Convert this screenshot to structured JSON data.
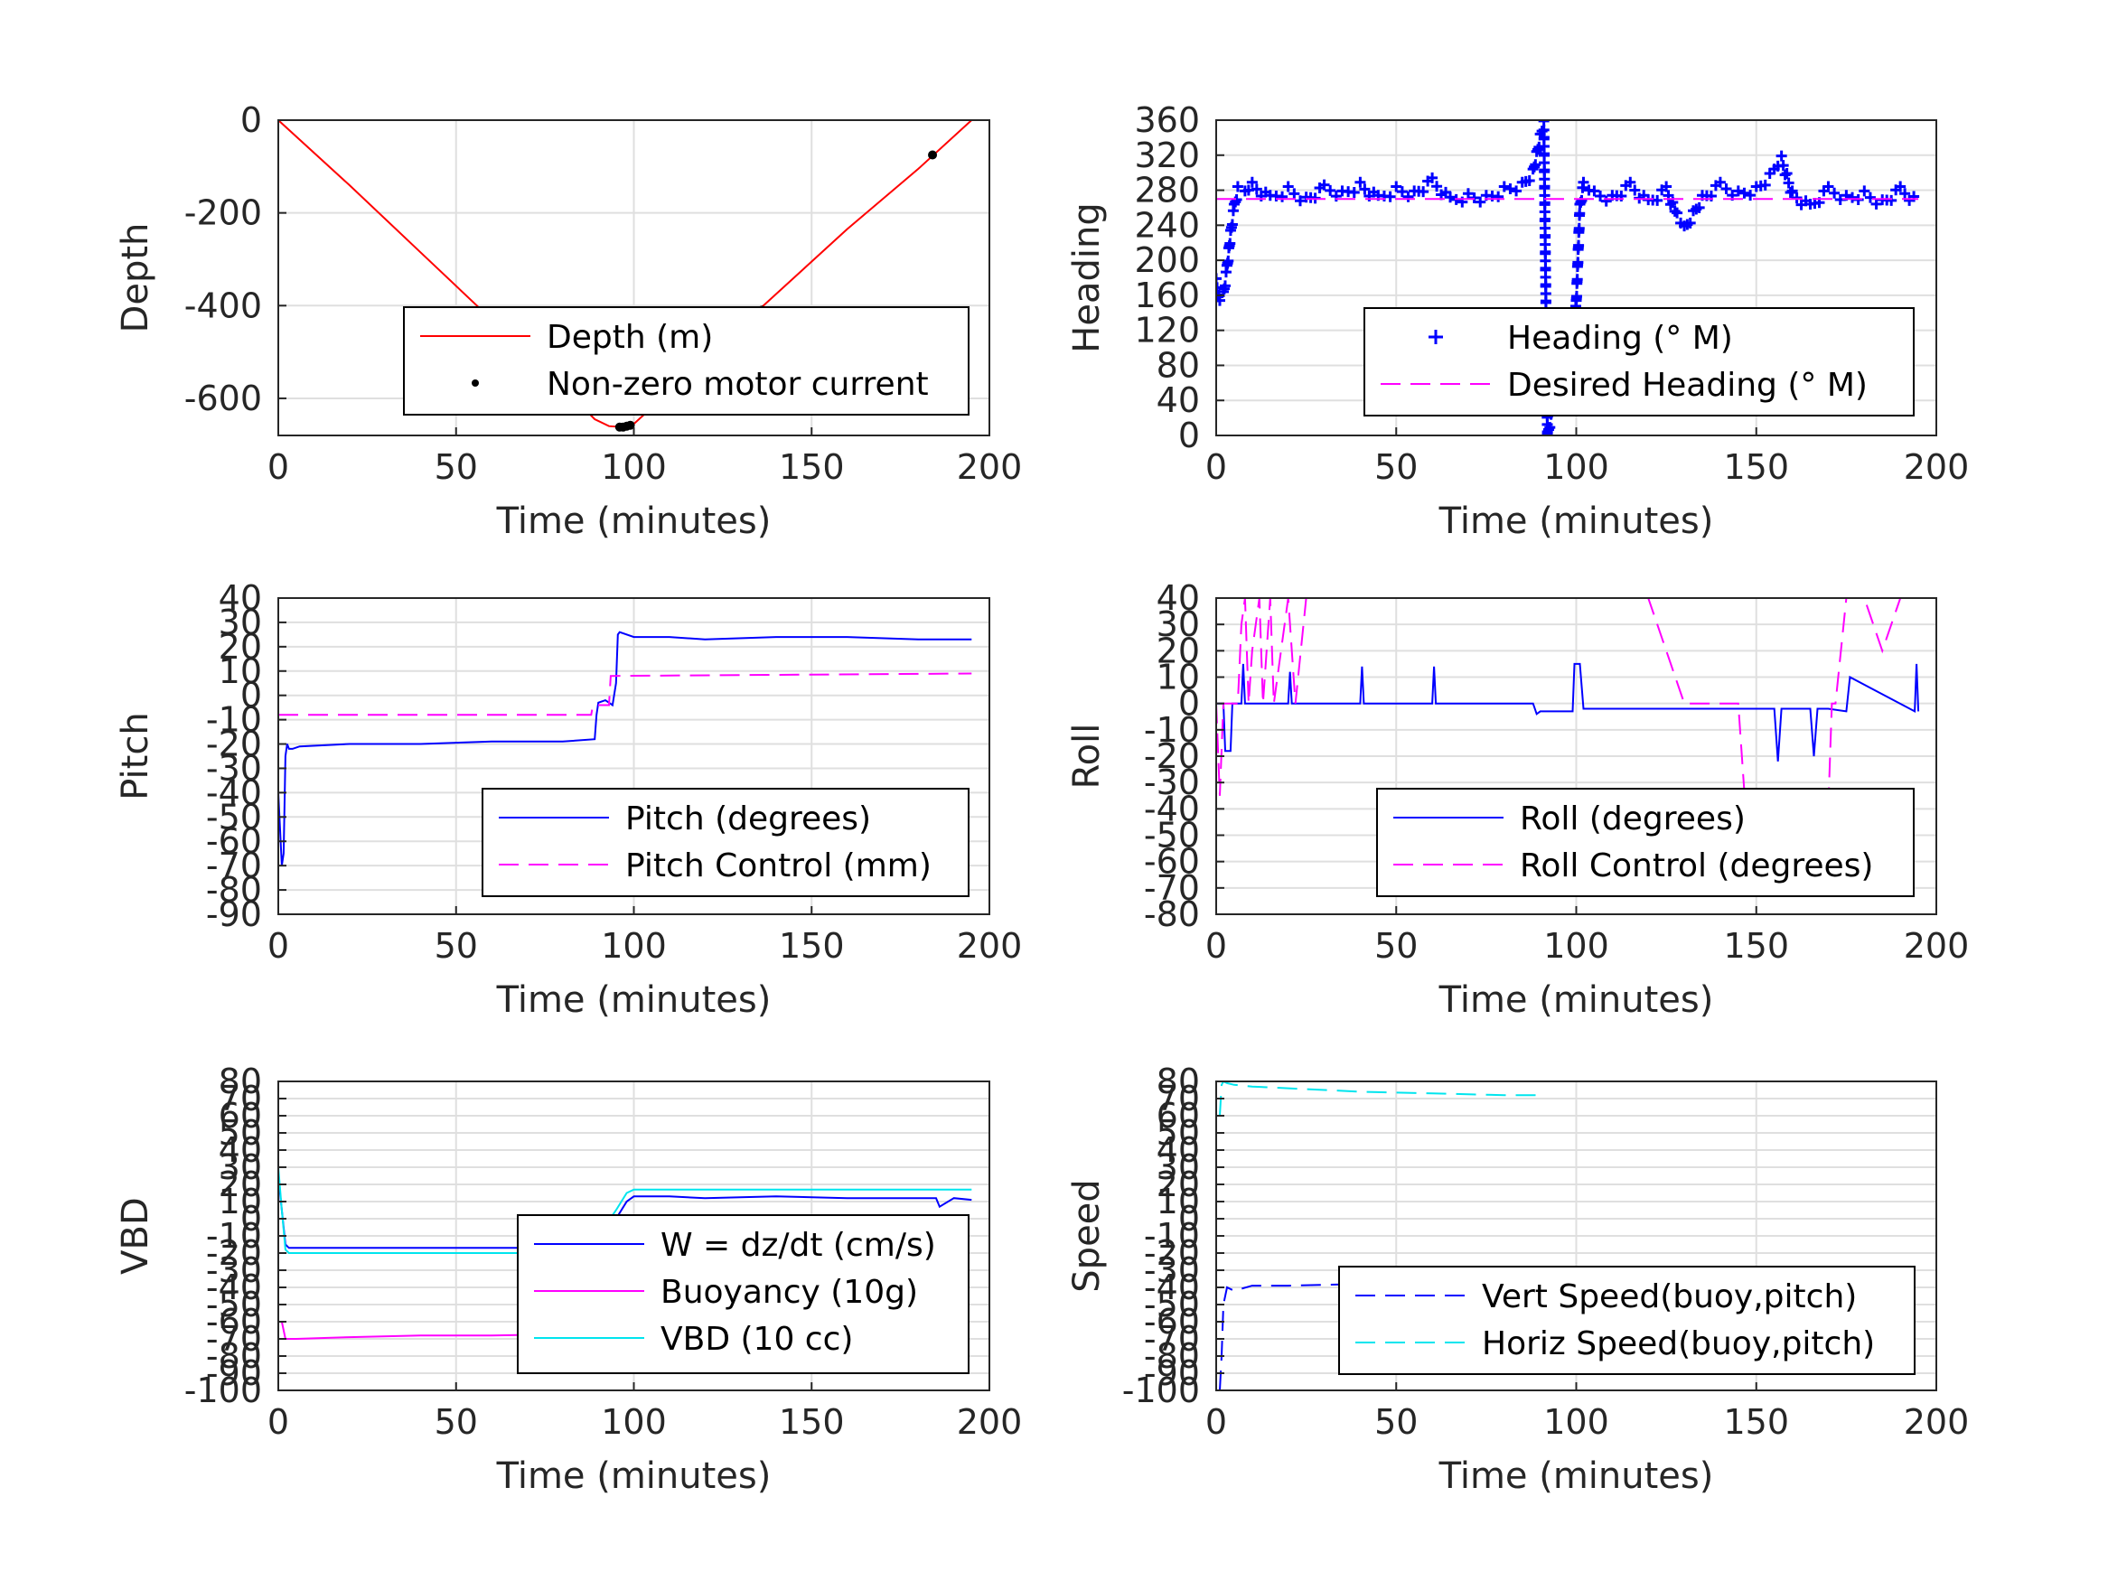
{
  "figure": {
    "background": "#ffffff",
    "axis_color": "#262626",
    "grid_color": "#dfdfdf"
  },
  "chart_data": [
    {
      "id": "depth",
      "type": "line",
      "xlabel": "Time (minutes)",
      "ylabel": "Depth",
      "xlim": [
        0,
        200
      ],
      "ylim": [
        -680,
        0
      ],
      "xticks": [
        0,
        50,
        100,
        150,
        200
      ],
      "yticks": [
        -600,
        -400,
        -200,
        0
      ],
      "xtick_labels": [
        "0",
        "50",
        "100",
        "150",
        "200"
      ],
      "ytick_labels": [
        "-600",
        "-400",
        "-200",
        "0"
      ],
      "grid": true,
      "legend_position": "lower-right-inside",
      "series": [
        {
          "name": "Depth (m)",
          "style": "line",
          "color": "#ff0000",
          "x": [
            0,
            20,
            40,
            60,
            80,
            89,
            93,
            97,
            100,
            110,
            120,
            140,
            160,
            180,
            195
          ],
          "y": [
            0,
            -140,
            -285,
            -430,
            -575,
            -645,
            -660,
            -662,
            -655,
            -585,
            -515,
            -375,
            -235,
            -105,
            0
          ]
        },
        {
          "name": "Non-zero motor current",
          "style": "dot",
          "color": "#000000",
          "x": [
            96,
            97,
            98,
            99,
            136,
            184
          ],
          "y": [
            -662,
            -662,
            -660,
            -658,
            -410,
            -75
          ]
        }
      ]
    },
    {
      "id": "heading",
      "type": "line",
      "xlabel": "Time (minutes)",
      "ylabel": "Heading",
      "xlim": [
        0,
        200
      ],
      "ylim": [
        0,
        360
      ],
      "xticks": [
        0,
        50,
        100,
        150,
        200
      ],
      "yticks": [
        0,
        40,
        80,
        120,
        160,
        200,
        240,
        280,
        320,
        360
      ],
      "xtick_labels": [
        "0",
        "50",
        "100",
        "150",
        "200"
      ],
      "ytick_labels": [
        "0",
        "40",
        "80",
        "120",
        "160",
        "200",
        "240",
        "280",
        "320",
        "360"
      ],
      "grid": true,
      "legend_position": "lower-right-inside",
      "series": [
        {
          "name": "Heading (° M)",
          "style": "plus",
          "color": "#0000ff",
          "x": [
            0,
            1,
            2,
            3,
            4,
            5,
            6,
            8,
            10,
            15,
            20,
            25,
            30,
            35,
            40,
            45,
            50,
            55,
            60,
            65,
            70,
            75,
            80,
            85,
            88,
            90,
            91,
            92,
            93,
            94,
            95,
            96,
            97,
            98,
            99,
            100,
            101,
            102,
            105,
            110,
            115,
            120,
            125,
            128,
            130,
            135,
            140,
            145,
            150,
            155,
            157,
            160,
            165,
            170,
            175,
            180,
            185,
            190,
            195
          ],
          "y": [
            175,
            150,
            160,
            190,
            230,
            260,
            280,
            275,
            285,
            270,
            280,
            268,
            282,
            275,
            285,
            270,
            280,
            275,
            290,
            268,
            272,
            270,
            280,
            285,
            300,
            340,
            355,
            0,
            20,
            55,
            90,
            110,
            95,
            100,
            105,
            150,
            260,
            285,
            275,
            270,
            285,
            265,
            280,
            250,
            235,
            270,
            285,
            275,
            280,
            300,
            315,
            275,
            260,
            280,
            270,
            275,
            265,
            280,
            265
          ]
        },
        {
          "name": "Desired Heading (° M)",
          "style": "dash",
          "color": "#ff00ff",
          "x": [
            0,
            195
          ],
          "y": [
            270,
            270
          ]
        }
      ]
    },
    {
      "id": "pitch",
      "type": "line",
      "xlabel": "Time (minutes)",
      "ylabel": "Pitch",
      "xlim": [
        0,
        200
      ],
      "ylim": [
        -90,
        40
      ],
      "xticks": [
        0,
        50,
        100,
        150,
        200
      ],
      "yticks": [
        -90,
        -80,
        -70,
        -60,
        -50,
        -40,
        -30,
        -20,
        -10,
        0,
        10,
        20,
        30,
        40
      ],
      "xtick_labels": [
        "0",
        "50",
        "100",
        "150",
        "200"
      ],
      "ytick_labels": [
        "-90",
        "-80",
        "-70",
        "-60",
        "-50",
        "-40",
        "-30",
        "-20",
        "-10",
        "0",
        "10",
        "20",
        "30",
        "40"
      ],
      "grid": true,
      "legend_position": "lower-right-inside",
      "series": [
        {
          "name": "Pitch (degrees)",
          "style": "line",
          "color": "#0000ff",
          "x": [
            0,
            1,
            1.5,
            2,
            2.5,
            3,
            4,
            6,
            20,
            40,
            60,
            80,
            89,
            89.5,
            90,
            92,
            94,
            95,
            95.5,
            96,
            100,
            110,
            120,
            140,
            160,
            180,
            195
          ],
          "y": [
            -40,
            -70,
            -65,
            -25,
            -20,
            -22,
            -22,
            -21,
            -20,
            -20,
            -19,
            -19,
            -18,
            -8,
            -3,
            -2,
            -4,
            5,
            25,
            26,
            24,
            24,
            23,
            24,
            24,
            23,
            23
          ]
        },
        {
          "name": "Pitch Control (mm)",
          "style": "dash",
          "color": "#ff00ff",
          "x": [
            0,
            88,
            88.5,
            93,
            93.5,
            195
          ],
          "y": [
            -8,
            -8,
            -4,
            -4,
            8,
            9
          ]
        }
      ]
    },
    {
      "id": "roll",
      "type": "line",
      "xlabel": "Time (minutes)",
      "ylabel": "Roll",
      "xlim": [
        0,
        200
      ],
      "ylim": [
        -80,
        40
      ],
      "xticks": [
        0,
        50,
        100,
        150,
        200
      ],
      "yticks": [
        -80,
        -70,
        -60,
        -50,
        -40,
        -30,
        -20,
        -10,
        0,
        10,
        20,
        30,
        40
      ],
      "xtick_labels": [
        "0",
        "50",
        "100",
        "150",
        "200"
      ],
      "ytick_labels": [
        "-80",
        "-70",
        "-60",
        "-50",
        "-40",
        "-30",
        "-20",
        "-10",
        "0",
        "10",
        "20",
        "30",
        "40"
      ],
      "grid": true,
      "legend_position": "lower-right-inside",
      "series": [
        {
          "name": "Roll (degrees)",
          "style": "line",
          "color": "#0000ff",
          "x": [
            0,
            2,
            2.5,
            4,
            4.5,
            7,
            7.5,
            8,
            20,
            20.5,
            21,
            40,
            40.5,
            41,
            60,
            60.5,
            61,
            88,
            89,
            90,
            99,
            99.5,
            101,
            102,
            140,
            145,
            150,
            155,
            156,
            157,
            165,
            166,
            167,
            170,
            175,
            176,
            194,
            194.5,
            195
          ],
          "y": [
            0,
            0,
            -18,
            -18,
            0,
            0,
            15,
            0,
            0,
            12,
            0,
            0,
            14,
            0,
            0,
            14,
            0,
            0,
            -4,
            -3,
            -3,
            15,
            15,
            -2,
            -2,
            -2,
            -2,
            -2,
            -22,
            -2,
            -2,
            -20,
            -2,
            -2,
            -3,
            10,
            -3,
            15,
            -3
          ]
        },
        {
          "name": "Roll Control (degrees)",
          "style": "dash",
          "color": "#ff00ff",
          "x": [
            0,
            1,
            2,
            3,
            4,
            6,
            7,
            8,
            9,
            10,
            12,
            13,
            15,
            16,
            20,
            22,
            25,
            30,
            40,
            50,
            60,
            70,
            80,
            90,
            100,
            110,
            120,
            130,
            140,
            145,
            146,
            147,
            150,
            160,
            170,
            171,
            172,
            175,
            180,
            185,
            190,
            195
          ],
          "y": [
            0,
            -35,
            0,
            0,
            0,
            0,
            30,
            40,
            0,
            20,
            40,
            0,
            40,
            0,
            40,
            0,
            40,
            40,
            40,
            40,
            40,
            40,
            40,
            40,
            40,
            40,
            40,
            0,
            0,
            0,
            -20,
            -40,
            -40,
            -40,
            -40,
            0,
            0,
            40,
            40,
            20,
            40,
            40
          ]
        }
      ]
    },
    {
      "id": "vbd",
      "type": "line",
      "xlabel": "Time (minutes)",
      "ylabel": "VBD",
      "xlim": [
        0,
        200
      ],
      "ylim": [
        -100,
        80
      ],
      "xticks": [
        0,
        50,
        100,
        150,
        200
      ],
      "yticks": [
        -100,
        -90,
        -80,
        -70,
        -60,
        -50,
        -40,
        -30,
        -20,
        -10,
        0,
        10,
        20,
        30,
        40,
        50,
        60,
        70,
        80
      ],
      "xtick_labels": [
        "0",
        "50",
        "100",
        "150",
        "200"
      ],
      "ytick_labels": [
        "-100",
        "-90",
        "-80",
        "-70",
        "-60",
        "-50",
        "-40",
        "-30",
        "-20",
        "-10",
        "0",
        "10",
        "20",
        "30",
        "40",
        "50",
        "60",
        "70",
        "80"
      ],
      "grid": true,
      "legend_position": "lower-right-inside",
      "series": [
        {
          "name": "W = dz/dt (cm/s)",
          "style": "line",
          "color": "#0000ff",
          "x": [
            0,
            1,
            2,
            3,
            5,
            20,
            40,
            60,
            80,
            88,
            90,
            95,
            98,
            100,
            110,
            120,
            140,
            160,
            180,
            185,
            186,
            190,
            195
          ],
          "y": [
            25,
            5,
            -15,
            -17,
            -17,
            -17,
            -17,
            -17,
            -17,
            -16,
            -12,
            0,
            10,
            13,
            13,
            12,
            13,
            12,
            12,
            12,
            7,
            12,
            11
          ]
        },
        {
          "name": "Buoyancy (10g)",
          "style": "line",
          "color": "#ff00ff",
          "x": [
            0,
            1,
            2,
            5,
            20,
            40,
            60,
            89
          ],
          "y": [
            -60,
            -60,
            -70,
            -70,
            -69,
            -68,
            -68,
            -67
          ]
        },
        {
          "name": "VBD (10 cc)",
          "style": "line",
          "color": "#00e5ee",
          "x": [
            0,
            1,
            2,
            3,
            5,
            20,
            40,
            60,
            80,
            89,
            90,
            95,
            98,
            100,
            195
          ],
          "y": [
            30,
            5,
            -18,
            -20,
            -20,
            -20,
            -20,
            -20,
            -20,
            -18,
            -10,
            5,
            15,
            17,
            17
          ]
        }
      ]
    },
    {
      "id": "speed",
      "type": "line",
      "xlabel": "Time (minutes)",
      "ylabel": "Speed",
      "xlim": [
        0,
        200
      ],
      "ylim": [
        -100,
        80
      ],
      "xticks": [
        0,
        50,
        100,
        150,
        200
      ],
      "yticks": [
        -100,
        -90,
        -80,
        -70,
        -60,
        -50,
        -40,
        -30,
        -20,
        -10,
        0,
        10,
        20,
        30,
        40,
        50,
        60,
        70,
        80
      ],
      "xtick_labels": [
        "0",
        "50",
        "100",
        "150",
        "200"
      ],
      "ytick_labels": [
        "-100",
        "-90",
        "-80",
        "-70",
        "-60",
        "-50",
        "-40",
        "-30",
        "-20",
        "-10",
        "0",
        "10",
        "20",
        "30",
        "40",
        "50",
        "60",
        "70",
        "80"
      ],
      "grid": true,
      "legend_position": "lower-right-inside",
      "series": [
        {
          "name": "Vert Speed(buoy,pitch)",
          "style": "dash",
          "color": "#0000ff",
          "x": [
            1,
            1.5,
            2,
            3,
            5,
            10,
            20,
            40,
            60,
            80,
            89
          ],
          "y": [
            -100,
            -80,
            -50,
            -40,
            -42,
            -39,
            -39,
            -38,
            -37,
            -36,
            -35
          ]
        },
        {
          "name": "Horiz Speed(buoy,pitch)",
          "style": "dash",
          "color": "#00e5ee",
          "x": [
            1,
            1.5,
            2,
            3,
            5,
            10,
            20,
            40,
            60,
            80,
            89
          ],
          "y": [
            60,
            78,
            80,
            79,
            78,
            77,
            76,
            74,
            73,
            72,
            72
          ]
        }
      ]
    }
  ]
}
